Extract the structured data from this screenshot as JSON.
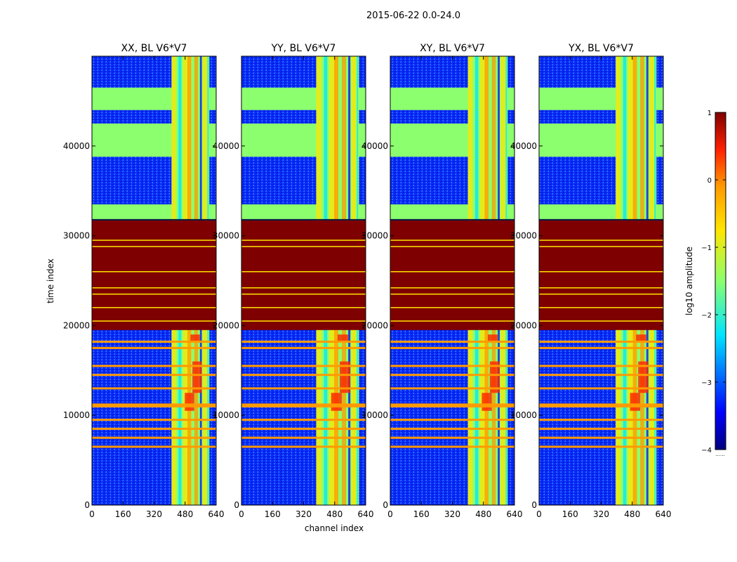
{
  "figure": {
    "suptitle": "2015-06-22 0.0-24.0",
    "xlabel": "channel index",
    "ylabel": "time index"
  },
  "colors": {
    "deep_blue": "#00007f",
    "blue": "#0000ff",
    "mid_blue": "#1060ff",
    "cyan": "#00e5ff",
    "green": "#8cff6e",
    "yellow": "#ffe600",
    "orange": "#ff9a00",
    "red": "#ff2000",
    "dark_red": "#7f0000"
  },
  "chart_data": {
    "type": "heatmap",
    "panels": [
      {
        "title": "XX, BL V6*V7",
        "band_start": 410,
        "show_ylabel": true
      },
      {
        "title": "YY, BL V6*V7",
        "band_start": 385,
        "show_ylabel": false
      },
      {
        "title": "XY, BL V6*V7",
        "band_start": 400,
        "show_ylabel": false
      },
      {
        "title": "YX, BL V6*V7",
        "band_start": 395,
        "show_ylabel": false
      }
    ],
    "xlim": [
      0,
      640
    ],
    "xticks": [
      0,
      160,
      320,
      480,
      640
    ],
    "xtick_labels": [
      "0",
      "160",
      "320",
      "480",
      "640"
    ],
    "ylim": [
      0,
      50000
    ],
    "yticks": [
      0,
      10000,
      20000,
      30000,
      40000
    ],
    "ytick_labels": [
      "0",
      "10000",
      "20000",
      "30000",
      "40000"
    ],
    "band_end": 605,
    "saturated_block": [
      19500,
      31700
    ],
    "flat_block_ranges": [
      [
        31700,
        33500
      ],
      [
        38800,
        42500
      ],
      [
        44000,
        46500
      ]
    ],
    "yellow_lines_in_block": [
      20500,
      22000,
      23500,
      24200,
      26000,
      28800,
      29500
    ],
    "orange_lines": [
      6500,
      7500,
      8500,
      9500,
      11000,
      11200,
      13000,
      14500,
      15500,
      17500,
      18200
    ],
    "colorbar": {
      "label": "log10 amplitude",
      "range": [
        -4,
        1
      ],
      "ticks": [
        -4,
        -3,
        -2,
        -1,
        0,
        1
      ],
      "tick_labels": [
        "−4",
        "−3",
        "−2",
        "−1",
        "0",
        "1"
      ],
      "minor_label": "......"
    }
  }
}
